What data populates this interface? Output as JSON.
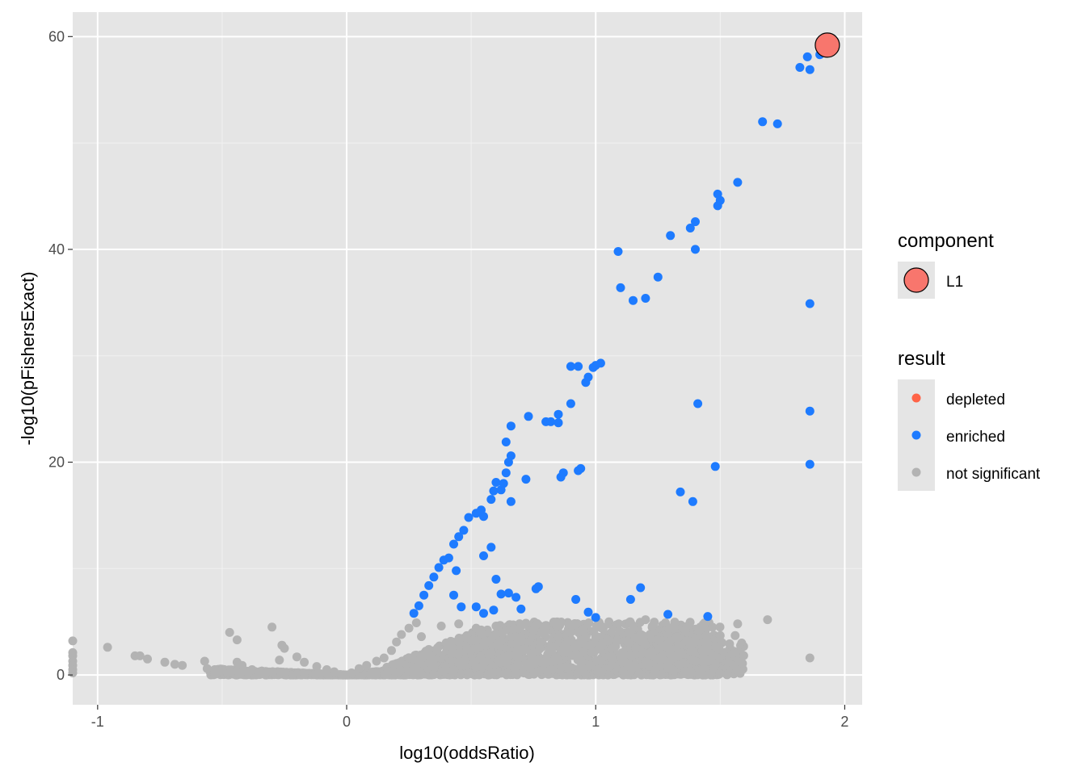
{
  "chart_data": {
    "type": "scatter",
    "xlabel": "log10(oddsRatio)",
    "ylabel": "-log10(pFishersExact)",
    "xlim": [
      -1.1,
      2.07
    ],
    "ylim": [
      -2.8,
      62.3
    ],
    "x_ticks": [
      -1,
      0,
      1,
      2
    ],
    "x_tick_labels": [
      "-1",
      "0",
      "1",
      "2"
    ],
    "y_ticks": [
      0,
      20,
      40,
      60
    ],
    "y_tick_labels": [
      "0",
      "20",
      "40",
      "60"
    ],
    "grid": true,
    "panel_background": "#e5e5e5",
    "legend_position": "right",
    "legend": {
      "component": {
        "title": "component",
        "entries": [
          {
            "label": "L1",
            "color": "#f8766d"
          }
        ]
      },
      "result": {
        "title": "result",
        "entries": [
          {
            "label": "depleted",
            "color": "#ff6347"
          },
          {
            "label": "enriched",
            "color": "#1e7bff"
          },
          {
            "label": "not significant",
            "color": "#b3b3b3"
          }
        ]
      }
    },
    "series": [
      {
        "name": "not significant",
        "color": "#b3b3b3",
        "points": [
          [
            -1.1,
            3.2
          ],
          [
            -1.1,
            2.1
          ],
          [
            -1.1,
            1.8
          ],
          [
            -1.1,
            1.3
          ],
          [
            -1.1,
            0.9
          ],
          [
            -1.1,
            0.5
          ],
          [
            -1.1,
            0.2
          ],
          [
            -0.96,
            2.6
          ],
          [
            -0.85,
            1.8
          ],
          [
            -0.83,
            1.8
          ],
          [
            -0.8,
            1.5
          ],
          [
            -0.73,
            1.2
          ],
          [
            -0.69,
            1.0
          ],
          [
            -0.66,
            0.9
          ],
          [
            -0.57,
            1.3
          ],
          [
            -0.56,
            0.6
          ],
          [
            -0.53,
            0.5
          ],
          [
            -0.5,
            0.5
          ],
          [
            -0.47,
            4.0
          ],
          [
            -0.44,
            3.3
          ],
          [
            -0.44,
            1.2
          ],
          [
            -0.42,
            0.9
          ],
          [
            -0.38,
            0.5
          ],
          [
            -0.35,
            0.3
          ],
          [
            -0.3,
            4.5
          ],
          [
            -0.27,
            1.4
          ],
          [
            -0.26,
            2.8
          ],
          [
            -0.25,
            2.5
          ],
          [
            -0.2,
            1.7
          ],
          [
            -0.17,
            1.2
          ],
          [
            -0.12,
            0.8
          ],
          [
            -0.08,
            0.5
          ],
          [
            -0.05,
            0.3
          ],
          [
            0.02,
            0.2
          ],
          [
            0.05,
            0.6
          ],
          [
            0.08,
            0.9
          ],
          [
            0.12,
            1.3
          ],
          [
            0.15,
            1.6
          ],
          [
            0.18,
            2.3
          ],
          [
            0.2,
            3.1
          ],
          [
            0.22,
            3.8
          ],
          [
            0.25,
            4.4
          ],
          [
            0.28,
            4.9
          ],
          [
            0.3,
            3.6
          ],
          [
            0.33,
            2.4
          ],
          [
            0.35,
            1.5
          ],
          [
            0.38,
            4.6
          ],
          [
            0.4,
            3.0
          ],
          [
            0.42,
            2.0
          ],
          [
            0.45,
            4.8
          ],
          [
            0.48,
            3.5
          ],
          [
            0.5,
            2.3
          ],
          [
            0.52,
            4.4
          ],
          [
            0.55,
            3.1
          ],
          [
            0.58,
            2.1
          ],
          [
            0.6,
            4.6
          ],
          [
            0.62,
            3.2
          ],
          [
            0.65,
            1.8
          ],
          [
            0.67,
            4.3
          ],
          [
            0.7,
            3.5
          ],
          [
            0.72,
            2.4
          ],
          [
            0.75,
            4.2
          ],
          [
            0.78,
            3.1
          ],
          [
            0.8,
            4.6
          ],
          [
            0.82,
            2.5
          ],
          [
            0.85,
            3.6
          ],
          [
            0.88,
            2.2
          ],
          [
            0.9,
            4.0
          ],
          [
            0.93,
            3.0
          ],
          [
            0.95,
            4.3
          ],
          [
            0.98,
            2.8
          ],
          [
            1.0,
            3.6
          ],
          [
            1.02,
            2.4
          ],
          [
            1.05,
            3.2
          ],
          [
            1.08,
            2.7
          ],
          [
            1.1,
            1.9
          ],
          [
            1.14,
            4.9
          ],
          [
            1.16,
            3.5
          ],
          [
            1.2,
            5.2
          ],
          [
            1.22,
            2.1
          ],
          [
            1.25,
            3.3
          ],
          [
            1.28,
            4.9
          ],
          [
            1.3,
            2.4
          ],
          [
            1.33,
            3.5
          ],
          [
            1.36,
            4.2
          ],
          [
            1.38,
            2.2
          ],
          [
            1.4,
            1.3
          ],
          [
            1.42,
            4.5
          ],
          [
            1.45,
            2.6
          ],
          [
            1.48,
            3.4
          ],
          [
            1.5,
            3.7
          ],
          [
            1.56,
            3.7
          ],
          [
            1.57,
            4.8
          ],
          [
            1.69,
            5.2
          ],
          [
            1.86,
            1.6
          ]
        ]
      },
      {
        "name": "enriched",
        "color": "#1e7bff",
        "points": [
          [
            0.27,
            5.8
          ],
          [
            0.29,
            6.5
          ],
          [
            0.31,
            7.5
          ],
          [
            0.33,
            8.4
          ],
          [
            0.35,
            9.2
          ],
          [
            0.37,
            10.1
          ],
          [
            0.39,
            10.8
          ],
          [
            0.41,
            11.0
          ],
          [
            0.43,
            12.3
          ],
          [
            0.45,
            13.0
          ],
          [
            0.47,
            13.6
          ],
          [
            0.49,
            14.8
          ],
          [
            0.52,
            15.2
          ],
          [
            0.54,
            15.5
          ],
          [
            0.55,
            14.9
          ],
          [
            0.58,
            16.5
          ],
          [
            0.59,
            17.3
          ],
          [
            0.6,
            18.1
          ],
          [
            0.62,
            17.4
          ],
          [
            0.63,
            18.0
          ],
          [
            0.64,
            19.0
          ],
          [
            0.65,
            20.0
          ],
          [
            0.66,
            20.6
          ],
          [
            0.64,
            21.9
          ],
          [
            0.66,
            23.4
          ],
          [
            0.73,
            24.3
          ],
          [
            0.8,
            23.8
          ],
          [
            0.82,
            23.8
          ],
          [
            0.85,
            23.7
          ],
          [
            0.85,
            24.5
          ],
          [
            0.9,
            25.5
          ],
          [
            0.9,
            29.0
          ],
          [
            0.93,
            29.0
          ],
          [
            0.96,
            27.5
          ],
          [
            0.97,
            28.0
          ],
          [
            0.99,
            28.9
          ],
          [
            1.0,
            29.1
          ],
          [
            1.02,
            29.3
          ],
          [
            0.72,
            18.4
          ],
          [
            0.86,
            18.6
          ],
          [
            0.87,
            19.0
          ],
          [
            0.93,
            19.2
          ],
          [
            0.94,
            19.4
          ],
          [
            0.66,
            16.3
          ],
          [
            0.55,
            11.2
          ],
          [
            0.58,
            12.0
          ],
          [
            0.44,
            9.8
          ],
          [
            0.43,
            7.5
          ],
          [
            0.46,
            6.4
          ],
          [
            0.52,
            6.4
          ],
          [
            0.55,
            5.8
          ],
          [
            0.59,
            6.1
          ],
          [
            0.6,
            9.0
          ],
          [
            0.62,
            7.6
          ],
          [
            0.65,
            7.7
          ],
          [
            0.68,
            7.3
          ],
          [
            0.7,
            6.2
          ],
          [
            0.76,
            8.1
          ],
          [
            0.77,
            8.3
          ],
          [
            0.92,
            7.1
          ],
          [
            0.97,
            5.9
          ],
          [
            1.0,
            5.4
          ],
          [
            1.14,
            7.1
          ],
          [
            1.18,
            8.2
          ],
          [
            1.29,
            5.7
          ],
          [
            1.45,
            5.5
          ],
          [
            1.09,
            39.8
          ],
          [
            1.1,
            36.4
          ],
          [
            1.15,
            35.2
          ],
          [
            1.2,
            35.4
          ],
          [
            1.25,
            37.4
          ],
          [
            1.3,
            41.3
          ],
          [
            1.38,
            42.0
          ],
          [
            1.4,
            42.6
          ],
          [
            1.4,
            40.0
          ],
          [
            1.49,
            44.1
          ],
          [
            1.5,
            44.6
          ],
          [
            1.49,
            45.2
          ],
          [
            1.57,
            46.3
          ],
          [
            1.67,
            52.0
          ],
          [
            1.73,
            51.8
          ],
          [
            1.82,
            57.1
          ],
          [
            1.85,
            58.1
          ],
          [
            1.86,
            56.9
          ],
          [
            1.9,
            58.3
          ],
          [
            1.86,
            34.9
          ],
          [
            1.86,
            24.8
          ],
          [
            1.86,
            19.8
          ],
          [
            1.41,
            25.5
          ],
          [
            1.48,
            19.6
          ],
          [
            1.34,
            17.2
          ],
          [
            1.39,
            16.3
          ]
        ]
      },
      {
        "name": "depleted",
        "color": "#ff6347",
        "points": []
      },
      {
        "name": "L1",
        "color": "#f8766d",
        "points": [
          [
            1.93,
            59.2
          ]
        ]
      }
    ]
  }
}
